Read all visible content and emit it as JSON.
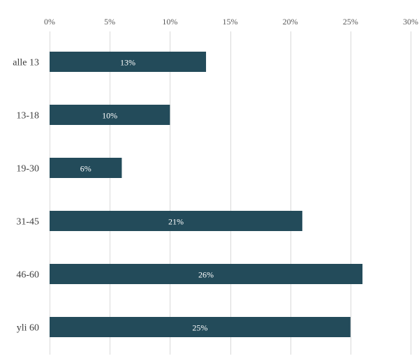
{
  "chart_data": {
    "type": "bar",
    "orientation": "horizontal",
    "title": "",
    "xlabel": "",
    "ylabel": "",
    "categories": [
      "alle 13",
      "13-18",
      "19-30",
      "31-45",
      "46-60",
      "yli 60"
    ],
    "values": [
      13,
      10,
      6,
      21,
      26,
      25
    ],
    "value_labels": [
      "13%",
      "10%",
      "6%",
      "21%",
      "26%",
      "25%"
    ],
    "xlim": [
      0,
      30
    ],
    "x_ticks": [
      0,
      5,
      10,
      15,
      20,
      25,
      30
    ],
    "x_tick_labels": [
      "0%",
      "5%",
      "10%",
      "15%",
      "20%",
      "25%",
      "30%"
    ],
    "x_axis_position": "top",
    "grid": true,
    "legend": "none",
    "bar_color": "#234b5a",
    "grid_color": "#d9d9d9"
  }
}
